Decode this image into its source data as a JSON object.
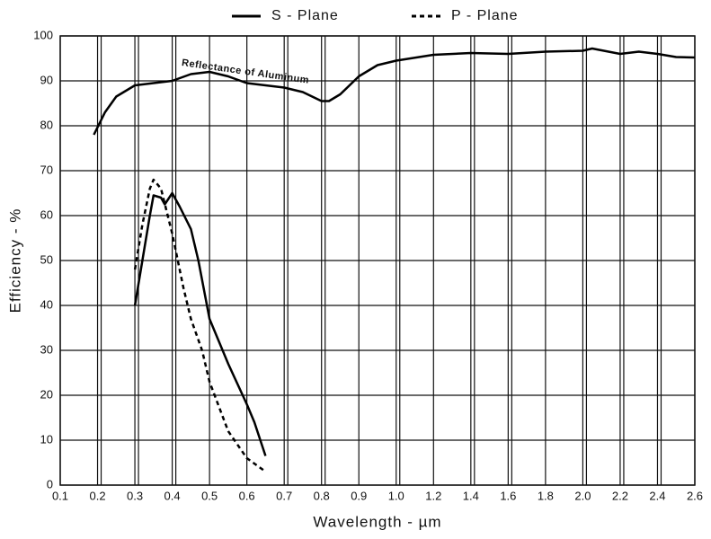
{
  "chart_data": {
    "type": "line",
    "xlabel": "Wavelength - µm",
    "ylabel": "Efficiency - %",
    "annotation": "Reflectance of Aluminum",
    "xlim": [
      0.1,
      2.6
    ],
    "xticks": [
      0.1,
      0.2,
      0.3,
      0.4,
      0.5,
      0.6,
      0.7,
      0.8,
      0.9,
      {
        "value": 1,
        "label": "1.0"
      },
      1.2,
      1.4,
      1.6,
      1.8,
      {
        "value": 2,
        "label": "2.0"
      },
      2.2,
      2.4,
      2.6
    ],
    "ylim": [
      0,
      100
    ],
    "yticks": [
      0,
      10,
      20,
      30,
      40,
      50,
      60,
      70,
      80,
      90,
      100
    ],
    "grid": true,
    "series": [
      {
        "color": "#000000",
        "dash": "solid",
        "x": [
          0.19,
          0.22,
          0.25,
          0.3,
          0.35,
          0.4,
          0.45,
          0.5,
          0.55,
          0.6,
          0.7,
          0.75,
          0.8,
          0.82,
          0.85,
          0.9,
          0.95,
          1.0,
          1.2,
          1.4,
          1.6,
          1.8,
          2.0,
          2.05,
          2.1,
          2.2,
          2.3,
          2.4,
          2.5,
          2.6
        ],
        "values": [
          78,
          83,
          86.5,
          89,
          89.5,
          90,
          91.5,
          92,
          91,
          89.5,
          88.5,
          87.5,
          85.5,
          85.5,
          87,
          91,
          93.5,
          94.5,
          95.8,
          96.2,
          96,
          96.5,
          96.7,
          97.2,
          96.8,
          96,
          96.5,
          96,
          95.3,
          95.2
        ]
      },
      {
        "name": "S - Plane",
        "color": "#000000",
        "dash": "solid",
        "x": [
          0.3,
          0.32,
          0.34,
          0.35,
          0.37,
          0.38,
          0.4,
          0.42,
          0.45,
          0.47,
          0.5,
          0.55,
          0.6,
          0.62,
          0.65
        ],
        "values": [
          40,
          50,
          60,
          64.5,
          64,
          62.5,
          65,
          62,
          57,
          50,
          37,
          27,
          18,
          14,
          6.5
        ]
      },
      {
        "name": "P - Plane",
        "color": "#000000",
        "dash": "dashed",
        "x": [
          0.3,
          0.32,
          0.34,
          0.35,
          0.37,
          0.4,
          0.43,
          0.45,
          0.48,
          0.5,
          0.55,
          0.6,
          0.65
        ],
        "values": [
          48,
          58,
          66,
          68,
          66,
          56,
          44,
          37,
          30,
          23,
          12,
          6,
          3
        ]
      }
    ]
  }
}
